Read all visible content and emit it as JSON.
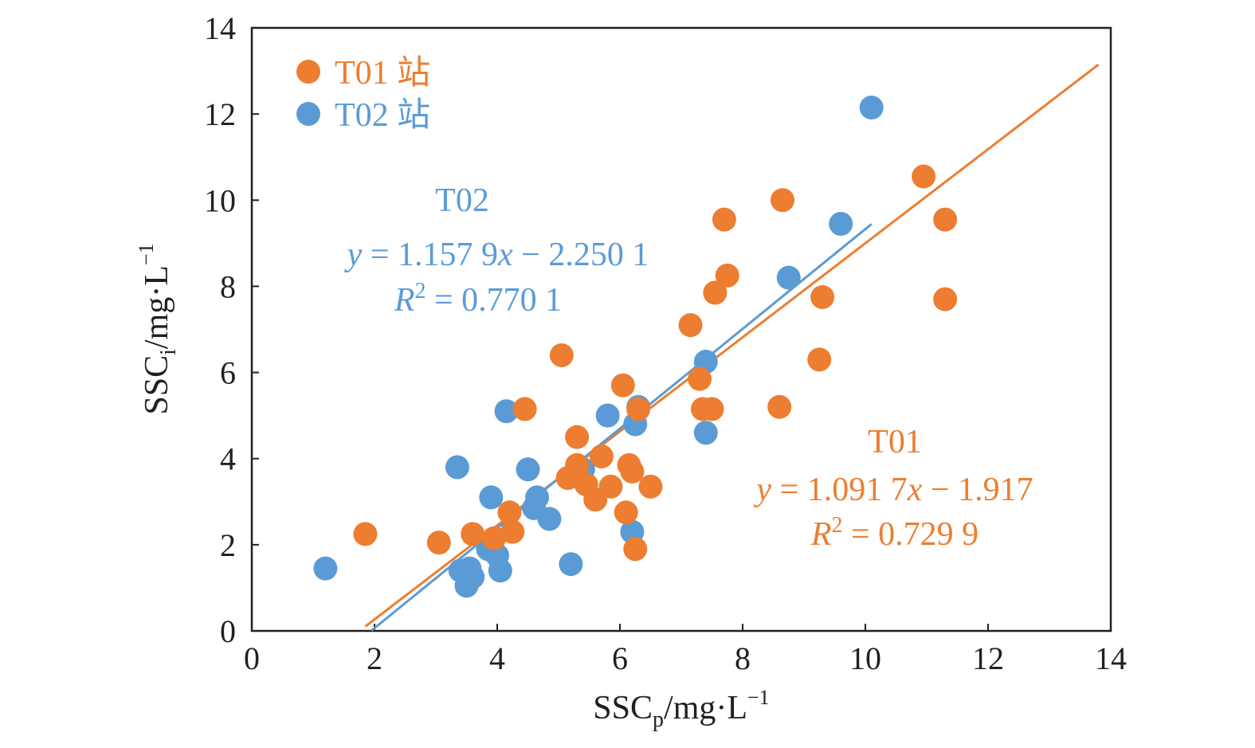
{
  "chart_data": {
    "type": "scatter",
    "title": "",
    "xlabel": "SSC_p/mg·L⁻¹",
    "ylabel": "SSC_i/mg·L⁻¹",
    "xlabel_parts": {
      "main": "SSC",
      "sub": "p",
      "unit": "/mg·L",
      "sup": "−1"
    },
    "ylabel_parts": {
      "main": "SSC",
      "sub": "i",
      "unit": "/mg·L",
      "sup": "−1"
    },
    "xlim": [
      0,
      14
    ],
    "ylim": [
      0,
      14
    ],
    "xticks": [
      "0",
      "2",
      "4",
      "6",
      "8",
      "10",
      "12",
      "14"
    ],
    "yticks": [
      "0",
      "2",
      "4",
      "6",
      "8",
      "10",
      "12",
      "14"
    ],
    "grid": false,
    "legend_position": "top-left",
    "series": [
      {
        "name": "T01 站",
        "color": "#ED7D31",
        "points": [
          [
            1.85,
            2.25
          ],
          [
            3.05,
            2.05
          ],
          [
            3.6,
            2.25
          ],
          [
            3.95,
            2.15
          ],
          [
            4.2,
            2.75
          ],
          [
            4.25,
            2.3
          ],
          [
            4.45,
            5.15
          ],
          [
            5.05,
            6.4
          ],
          [
            5.15,
            3.55
          ],
          [
            5.3,
            4.5
          ],
          [
            5.3,
            3.85
          ],
          [
            5.45,
            3.4
          ],
          [
            5.6,
            3.05
          ],
          [
            5.7,
            4.05
          ],
          [
            5.85,
            3.35
          ],
          [
            6.05,
            5.7
          ],
          [
            6.1,
            2.75
          ],
          [
            6.15,
            3.85
          ],
          [
            6.2,
            3.7
          ],
          [
            6.25,
            1.9
          ],
          [
            6.3,
            5.15
          ],
          [
            6.5,
            3.35
          ],
          [
            7.15,
            7.1
          ],
          [
            7.3,
            5.85
          ],
          [
            7.35,
            5.15
          ],
          [
            7.5,
            5.15
          ],
          [
            7.55,
            7.85
          ],
          [
            7.7,
            9.55
          ],
          [
            7.75,
            8.25
          ],
          [
            8.6,
            5.2
          ],
          [
            8.65,
            10.0
          ],
          [
            9.25,
            6.3
          ],
          [
            9.3,
            7.75
          ],
          [
            10.95,
            10.55
          ],
          [
            11.3,
            9.55
          ],
          [
            11.3,
            7.7
          ]
        ],
        "regression": {
          "slope": 1.0917,
          "intercept": -1.917,
          "x_range": [
            1.85,
            13.8
          ]
        },
        "annotation": {
          "station": "T01",
          "equation": [
            "y",
            " = 1.091 7",
            "x",
            " − 1.917"
          ],
          "r2_label": [
            "R",
            "2",
            " = 0.729 9"
          ]
        }
      },
      {
        "name": "T02 站",
        "color": "#5B9BD5",
        "points": [
          [
            1.2,
            1.45
          ],
          [
            3.35,
            3.8
          ],
          [
            3.4,
            1.4
          ],
          [
            3.5,
            1.05
          ],
          [
            3.55,
            1.45
          ],
          [
            3.6,
            1.25
          ],
          [
            3.85,
            1.9
          ],
          [
            3.9,
            3.1
          ],
          [
            4.0,
            1.75
          ],
          [
            4.05,
            1.4
          ],
          [
            4.15,
            5.1
          ],
          [
            4.5,
            3.75
          ],
          [
            4.6,
            2.85
          ],
          [
            4.65,
            3.1
          ],
          [
            4.85,
            2.6
          ],
          [
            5.2,
            1.55
          ],
          [
            5.4,
            3.75
          ],
          [
            5.8,
            5.0
          ],
          [
            6.2,
            2.3
          ],
          [
            6.25,
            4.8
          ],
          [
            6.3,
            5.2
          ],
          [
            7.4,
            6.25
          ],
          [
            7.4,
            4.6
          ],
          [
            8.75,
            8.2
          ],
          [
            9.6,
            9.45
          ],
          [
            10.1,
            12.15
          ]
        ],
        "regression": {
          "slope": 1.1579,
          "intercept": -2.2501,
          "x_range": [
            1.95,
            10.1
          ]
        },
        "annotation": {
          "station": "T02",
          "equation": [
            "y",
            " = 1.157 9",
            "x",
            " − 2.250 1"
          ],
          "r2_label": [
            "R",
            "2",
            " = 0.770 1"
          ]
        }
      }
    ]
  }
}
